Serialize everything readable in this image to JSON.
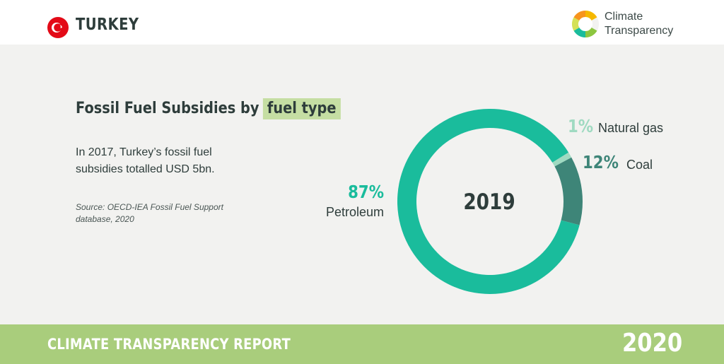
{
  "header": {
    "country": "TURKEY",
    "logo_lines": [
      "Climate",
      "Transparency"
    ]
  },
  "chart": {
    "title_prefix": "Fossil Fuel Subsidies by",
    "title_highlight": "fuel type",
    "description": "In 2017, Turkey’s fossil fuel subsidies totalled USD 5bn.",
    "source": "Source: OECD-IEA Fossil Fuel Support database, 2020"
  },
  "chart_data": {
    "type": "pie",
    "center_label": "2019",
    "slices": [
      {
        "label": "Natural gas",
        "percent_label": "1%",
        "value": 1,
        "color": "#9fdac1"
      },
      {
        "label": "Coal",
        "percent_label": "12%",
        "value": 12,
        "color": "#3e8578"
      },
      {
        "label": "Petroleum",
        "percent_label": "87%",
        "value": 87,
        "color": "#1abc9c"
      }
    ]
  },
  "footer": {
    "report": "CLIMATE TRANSPARENCY REPORT",
    "year": "2020"
  }
}
